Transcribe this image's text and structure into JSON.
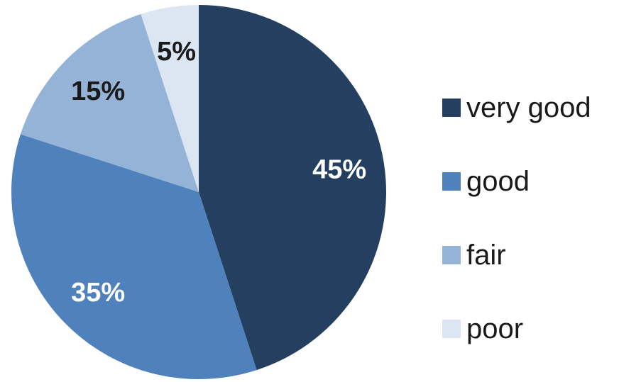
{
  "chart_data": {
    "type": "pie",
    "start": "12 o'clock",
    "direction": "clockwise",
    "slices": [
      {
        "name": "very good",
        "value": 45,
        "label": "45%",
        "color": "#243f60",
        "label_color": "#ffffff"
      },
      {
        "name": "good",
        "value": 35,
        "label": "35%",
        "color": "#4f81bd",
        "label_color": "#ffffff"
      },
      {
        "name": "fair",
        "value": 15,
        "label": "15%",
        "color": "#95b3d7",
        "label_color": "#1a1a1a"
      },
      {
        "name": "poor",
        "value": 5,
        "label": "5%",
        "color": "#dce6f2",
        "label_color": "#1a1a1a"
      }
    ],
    "legend_position": "right"
  }
}
